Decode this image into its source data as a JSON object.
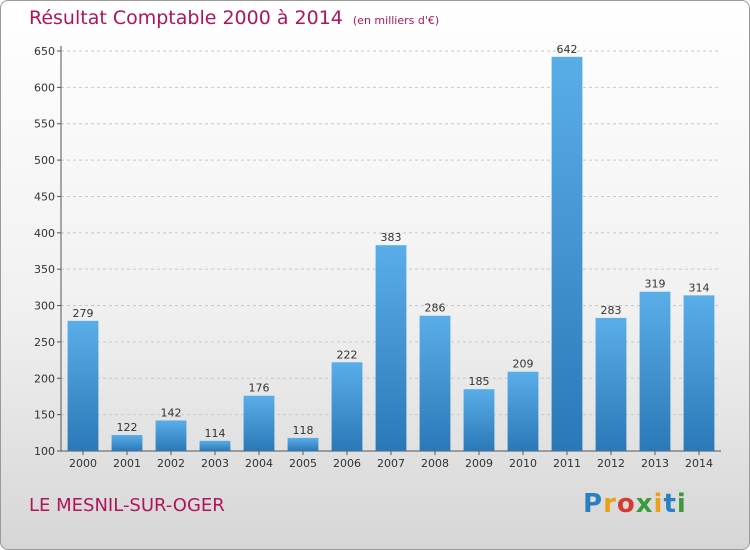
{
  "title": "Résultat Comptable 2000 à 2014",
  "subtitle": "(en milliers d'€)",
  "place": "LE MESNIL-SUR-OGER",
  "logo": {
    "letters": [
      "P",
      "r",
      "o",
      "x",
      "i",
      "t",
      "i"
    ],
    "colors": [
      "#2a7fc1",
      "#e8a21a",
      "#d43a2f",
      "#3c9a3c",
      "#e8a21a",
      "#2a7fc1",
      "#3c9a3c"
    ]
  },
  "colors": {
    "bar_light": "#5aaee8",
    "bar_dark": "#2a78b8",
    "title": "#b0155b"
  },
  "chart_data": {
    "type": "bar",
    "categories": [
      "2000",
      "2001",
      "2002",
      "2003",
      "2004",
      "2005",
      "2006",
      "2007",
      "2008",
      "2009",
      "2010",
      "2011",
      "2012",
      "2013",
      "2014"
    ],
    "values": [
      279,
      122,
      142,
      114,
      176,
      118,
      222,
      383,
      286,
      185,
      209,
      642,
      283,
      319,
      314
    ],
    "ylim": [
      100,
      650
    ],
    "yticks": [
      100,
      150,
      200,
      250,
      300,
      350,
      400,
      450,
      500,
      550,
      600,
      650
    ],
    "grid": true
  }
}
